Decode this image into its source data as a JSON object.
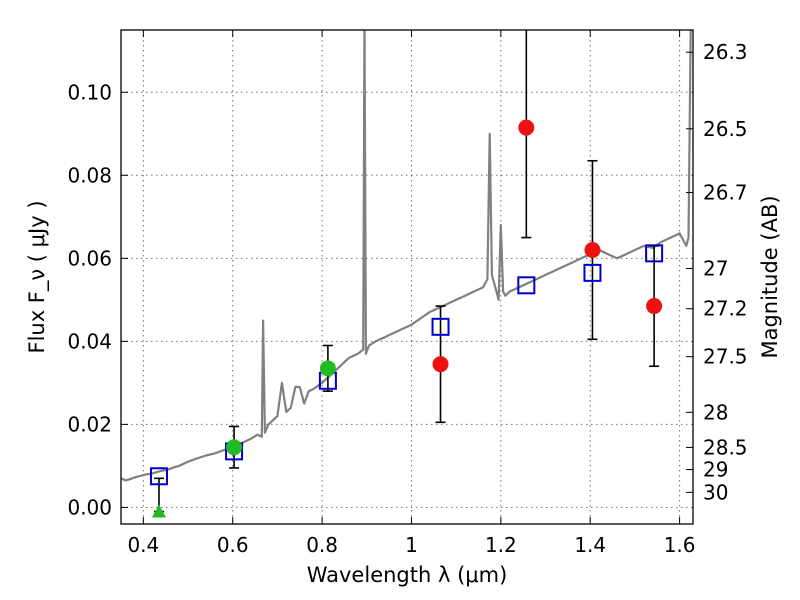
{
  "chart_data": {
    "type": "scatter",
    "xlabel": "Wavelength  λ (μm)",
    "ylabel": "Flux  F_ν  ( μJy )",
    "y2label": "Magnitude (AB)",
    "xlim": [
      0.35,
      1.63
    ],
    "ylim": [
      -0.004,
      0.115
    ],
    "grid": true,
    "x_ticks": [
      0.4,
      0.6,
      0.8,
      1.0,
      1.2,
      1.4,
      1.6
    ],
    "x_tick_labels": [
      "0.4",
      "0.6",
      "0.8",
      "1",
      "1.2",
      "1.4",
      "1.6"
    ],
    "y_ticks": [
      0.0,
      0.02,
      0.04,
      0.06,
      0.08,
      0.1
    ],
    "y_tick_labels": [
      "0.00",
      "0.02",
      "0.04",
      "0.06",
      "0.08",
      "0.10"
    ],
    "mag_ticks": [
      26.3,
      26.5,
      26.7,
      27,
      27.2,
      27.5,
      28,
      28.5,
      29,
      30
    ],
    "mag_tick_labels": [
      "26.3",
      "26.5",
      "26.7",
      "27",
      "27.2",
      "27.5",
      "28",
      "28.5",
      "29",
      "30"
    ],
    "colors": {
      "model": "#808080",
      "model_photometry": "#0000cc",
      "observed_detected": "#22bb22",
      "observed_other": "#ee1111",
      "error_bar": "#000000"
    },
    "series": [
      {
        "marker": "line",
        "x": [
          0.35,
          0.36,
          0.37,
          0.38,
          0.39,
          0.4,
          0.41,
          0.42,
          0.43,
          0.44,
          0.45,
          0.46,
          0.47,
          0.48,
          0.49,
          0.5,
          0.52,
          0.54,
          0.56,
          0.58,
          0.6,
          0.62,
          0.64,
          0.655,
          0.665,
          0.668,
          0.672,
          0.68,
          0.7,
          0.71,
          0.72,
          0.73,
          0.74,
          0.75,
          0.76,
          0.77,
          0.78,
          0.8,
          0.82,
          0.84,
          0.85,
          0.86,
          0.88,
          0.892,
          0.895,
          0.898,
          0.905,
          0.92,
          0.94,
          0.96,
          0.98,
          1.0,
          1.02,
          1.04,
          1.06,
          1.08,
          1.1,
          1.12,
          1.14,
          1.16,
          1.17,
          1.175,
          1.18,
          1.19,
          1.195,
          1.2,
          1.205,
          1.21,
          1.22,
          1.24,
          1.26,
          1.28,
          1.3,
          1.32,
          1.34,
          1.36,
          1.38,
          1.4,
          1.42,
          1.44,
          1.46,
          1.48,
          1.5,
          1.52,
          1.54,
          1.56,
          1.58,
          1.6,
          1.615,
          1.62,
          1.625,
          1.63
        ],
        "y": [
          0.007,
          0.0065,
          0.0068,
          0.0072,
          0.0075,
          0.0078,
          0.008,
          0.0082,
          0.0085,
          0.0088,
          0.009,
          0.0093,
          0.0097,
          0.01,
          0.0105,
          0.011,
          0.0118,
          0.0125,
          0.013,
          0.0138,
          0.0145,
          0.0155,
          0.0165,
          0.0175,
          0.017,
          0.045,
          0.018,
          0.02,
          0.022,
          0.03,
          0.023,
          0.024,
          0.029,
          0.029,
          0.025,
          0.028,
          0.0285,
          0.03,
          0.032,
          0.034,
          0.035,
          0.036,
          0.037,
          0.038,
          0.118,
          0.037,
          0.039,
          0.04,
          0.041,
          0.042,
          0.043,
          0.044,
          0.0455,
          0.047,
          0.048,
          0.049,
          0.05,
          0.051,
          0.052,
          0.053,
          0.055,
          0.09,
          0.056,
          0.052,
          0.05,
          0.068,
          0.052,
          0.051,
          0.052,
          0.053,
          0.054,
          0.055,
          0.056,
          0.057,
          0.058,
          0.059,
          0.06,
          0.061,
          0.062,
          0.061,
          0.06,
          0.061,
          0.062,
          0.063,
          0.0625,
          0.064,
          0.065,
          0.066,
          0.063,
          0.065,
          0.118,
          0.118
        ]
      },
      {
        "marker": "open-square",
        "x": [
          0.435,
          0.603,
          0.813,
          1.065,
          1.257,
          1.405,
          1.543
        ],
        "y": [
          0.0075,
          0.0135,
          0.0305,
          0.0435,
          0.0535,
          0.0565,
          0.0612
        ]
      },
      {
        "marker": "filled-circle",
        "x": [
          0.603,
          0.813
        ],
        "y": [
          0.0145,
          0.0335
        ],
        "yerr": [
          0.005,
          0.0055
        ]
      },
      {
        "marker": "triangle",
        "x": [
          0.435
        ],
        "y": [
          -0.001
        ],
        "yerr_upper": [
          0.008
        ]
      },
      {
        "marker": "filled-circle",
        "x": [
          1.065,
          1.257,
          1.405,
          1.543
        ],
        "y": [
          0.0345,
          0.0915,
          0.062,
          0.0485
        ],
        "yerr": [
          0.014,
          0.0265,
          0.0215,
          0.0145
        ]
      }
    ]
  }
}
